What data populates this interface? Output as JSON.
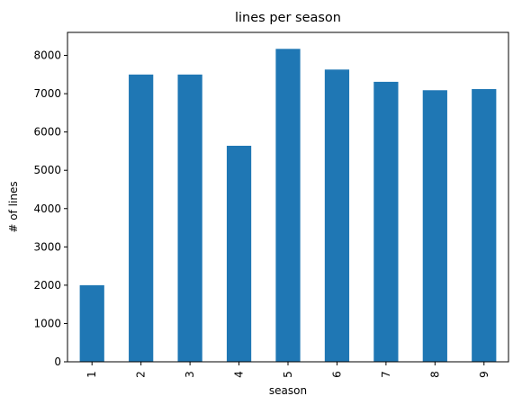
{
  "chart_data": {
    "type": "bar",
    "title": "lines per season",
    "xlabel": "season",
    "ylabel": "# of lines",
    "categories": [
      "1",
      "2",
      "3",
      "4",
      "5",
      "6",
      "7",
      "8",
      "9"
    ],
    "values": [
      2000,
      7500,
      7500,
      5640,
      8170,
      7630,
      7310,
      7090,
      7120
    ],
    "ylim": [
      0,
      8600
    ],
    "yticks": [
      0,
      1000,
      2000,
      3000,
      4000,
      5000,
      6000,
      7000,
      8000
    ],
    "grid": false,
    "legend": "none",
    "bar_color": "#1f77b4"
  }
}
